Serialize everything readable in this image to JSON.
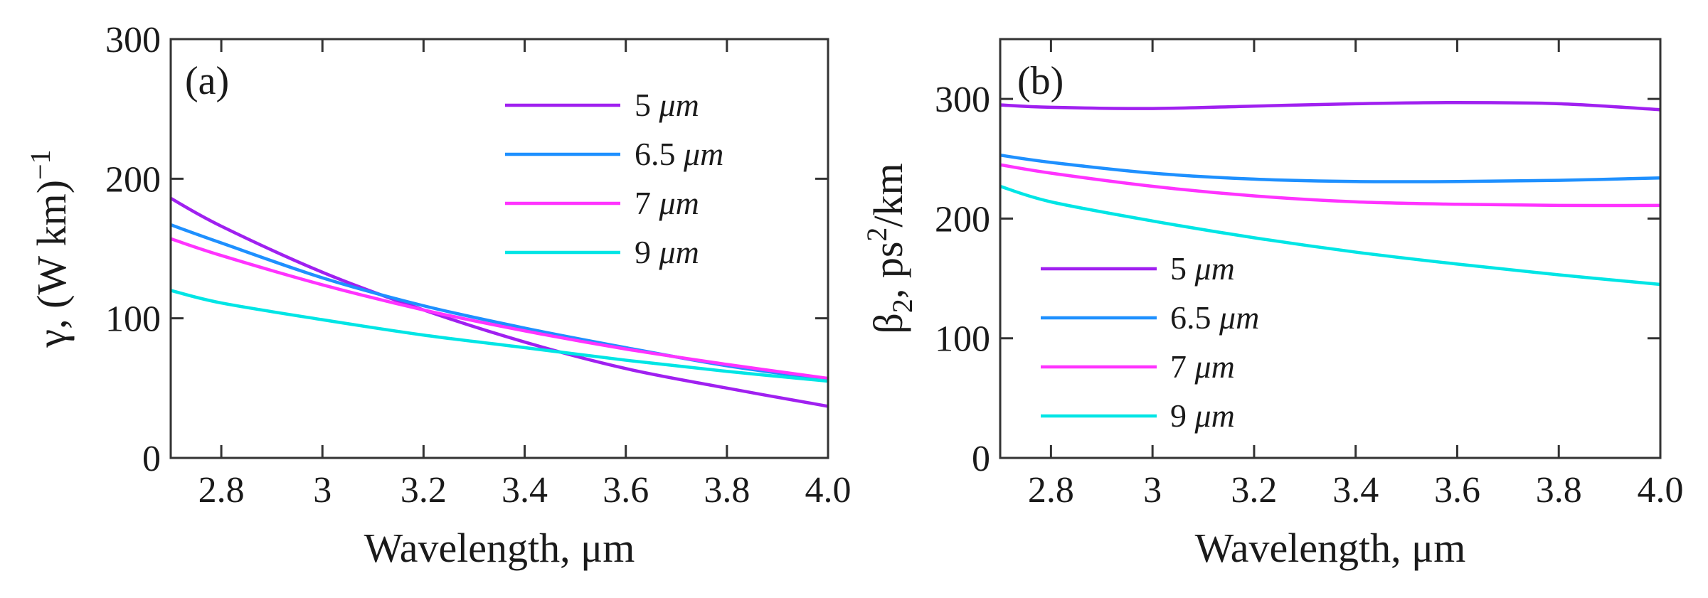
{
  "chart_data": [
    {
      "type": "line",
      "panel_label": "(a)",
      "xlabel": "Wavelength, μm",
      "ylabel_parts": [
        "γ,  (W km)",
        "−1"
      ],
      "xlim": [
        2.7,
        4.0
      ],
      "ylim": [
        0,
        300
      ],
      "xticks": [
        2.8,
        3.0,
        3.2,
        3.4,
        3.6,
        3.8,
        4.0
      ],
      "xtick_labels": [
        "2.8",
        "3",
        "3.2",
        "3.4",
        "3.6",
        "3.8",
        "4.0"
      ],
      "yticks": [
        0,
        100,
        200,
        300
      ],
      "ytick_labels": [
        "0",
        "100",
        "200",
        "300"
      ],
      "legend_position": "top-right",
      "series": [
        {
          "name": "5 μm",
          "num": "5",
          "unit": "μm",
          "color": "#a020f0",
          "x": [
            2.7,
            2.8,
            3.0,
            3.2,
            3.4,
            3.6,
            3.8,
            4.0
          ],
          "values": [
            186,
            166,
            133,
            106,
            83,
            64,
            50,
            37
          ]
        },
        {
          "name": "6.5 μm",
          "num": "6.5",
          "unit": "μm",
          "color": "#1e90ff",
          "x": [
            2.7,
            2.8,
            3.0,
            3.2,
            3.4,
            3.6,
            3.8,
            4.0
          ],
          "values": [
            167,
            154,
            129,
            109,
            93,
            79,
            66,
            56
          ]
        },
        {
          "name": "7 μm",
          "num": "7",
          "unit": "μm",
          "color": "#ff33ff",
          "x": [
            2.7,
            2.8,
            3.0,
            3.2,
            3.4,
            3.6,
            3.8,
            4.0
          ],
          "values": [
            157,
            145,
            124,
            106,
            91,
            78,
            67,
            57
          ]
        },
        {
          "name": "9 μm",
          "num": "9",
          "unit": "μm",
          "color": "#00e5e5",
          "x": [
            2.7,
            2.8,
            3.0,
            3.2,
            3.4,
            3.6,
            3.8,
            4.0
          ],
          "values": [
            120,
            111,
            99,
            88,
            79,
            70,
            62,
            55
          ]
        }
      ]
    },
    {
      "type": "line",
      "panel_label": "(b)",
      "xlabel": "Wavelength, μm",
      "ylabel_parts": [
        "β",
        "2",
        ", ps",
        "2",
        "/km"
      ],
      "xlim": [
        2.7,
        4.0
      ],
      "ylim": [
        0,
        350
      ],
      "xticks": [
        2.8,
        3.0,
        3.2,
        3.4,
        3.6,
        3.8,
        4.0
      ],
      "xtick_labels": [
        "2.8",
        "3",
        "3.2",
        "3.4",
        "3.6",
        "3.8",
        "4.0"
      ],
      "yticks": [
        0,
        100,
        200,
        300
      ],
      "ytick_labels": [
        "0",
        "100",
        "200",
        "300"
      ],
      "legend_position": "bottom-left",
      "series": [
        {
          "name": "5 μm",
          "num": "5",
          "unit": "μm",
          "color": "#a020f0",
          "x": [
            2.7,
            2.8,
            3.0,
            3.2,
            3.4,
            3.6,
            3.8,
            4.0
          ],
          "values": [
            295,
            293,
            292,
            294,
            296,
            297,
            296,
            291
          ]
        },
        {
          "name": "6.5 μm",
          "num": "6.5",
          "unit": "μm",
          "color": "#1e90ff",
          "x": [
            2.7,
            2.8,
            3.0,
            3.2,
            3.4,
            3.6,
            3.8,
            4.0
          ],
          "values": [
            253,
            247,
            238,
            233,
            231,
            231,
            232,
            234
          ]
        },
        {
          "name": "7 μm",
          "num": "7",
          "unit": "μm",
          "color": "#ff33ff",
          "x": [
            2.7,
            2.8,
            3.0,
            3.2,
            3.4,
            3.6,
            3.8,
            4.0
          ],
          "values": [
            245,
            238,
            227,
            219,
            214,
            212,
            211,
            211
          ]
        },
        {
          "name": "9 μm",
          "num": "9",
          "unit": "μm",
          "color": "#00e5e5",
          "x": [
            2.7,
            2.8,
            3.0,
            3.2,
            3.4,
            3.6,
            3.8,
            4.0
          ],
          "values": [
            227,
            214,
            198,
            184,
            172,
            162,
            153,
            145
          ]
        }
      ]
    }
  ]
}
